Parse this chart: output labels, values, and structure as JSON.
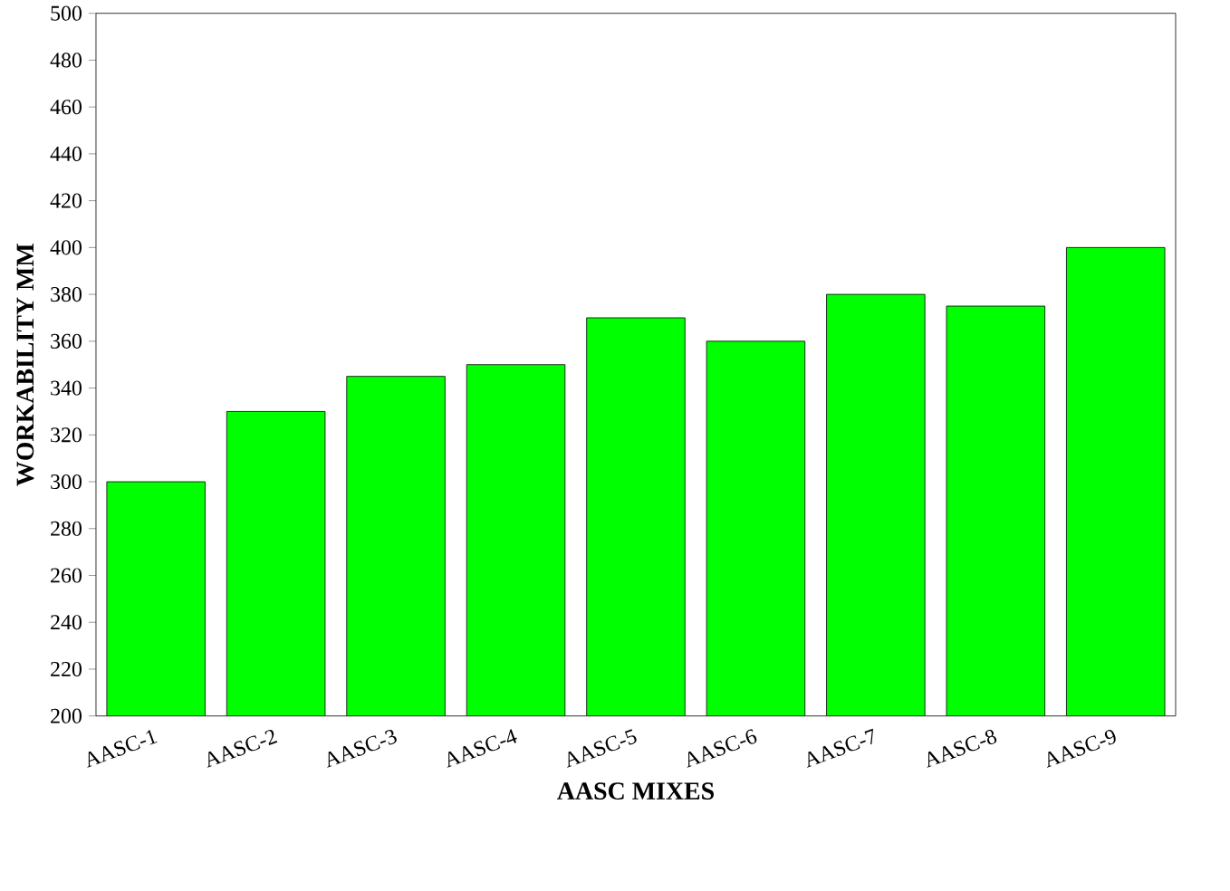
{
  "chart_data": {
    "type": "bar",
    "xlabel": "AASC MIXES",
    "ylabel": "WORKABILITY  MM",
    "categories": [
      "AASC-1",
      "AASC-2",
      "AASC-3",
      "AASC-4",
      "AASC-5",
      "AASC-6",
      "AASC-7",
      "AASC-8",
      "AASC-9"
    ],
    "values": [
      300,
      330,
      345,
      350,
      370,
      360,
      380,
      375,
      400
    ],
    "color": "#00ff00",
    "ylim": [
      200,
      500
    ],
    "yticks": [
      200,
      220,
      240,
      260,
      280,
      300,
      320,
      340,
      360,
      380,
      400,
      420,
      440,
      460,
      480,
      500
    ],
    "tick_labels": "xy"
  }
}
